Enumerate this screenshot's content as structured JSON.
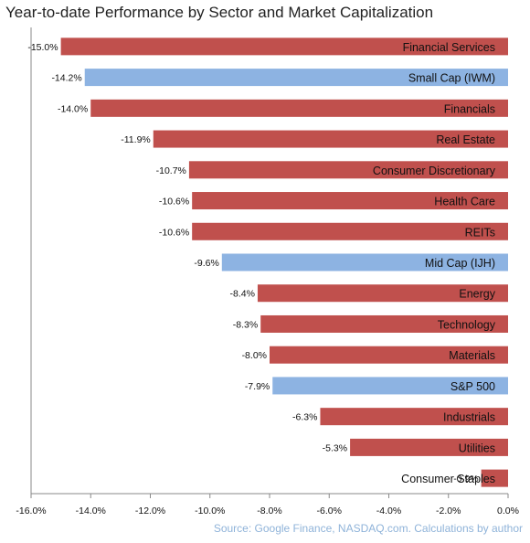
{
  "chart_data": {
    "type": "bar",
    "orientation": "horizontal",
    "title": "Year-to-date Performance by Sector and Market Capitalization",
    "source": "Source: Google Finance, NASDAQ.com. Calculations by author",
    "xlim": [
      -16,
      0
    ],
    "xticks": [
      -16,
      -14,
      -12,
      -10,
      -8,
      -6,
      -4,
      -2,
      0
    ],
    "xtick_labels": [
      "-16.0%",
      "-14.0%",
      "-12.0%",
      "-10.0%",
      "-8.0%",
      "-6.0%",
      "-4.0%",
      "-2.0%",
      "0.0%"
    ],
    "grid": false,
    "colors": {
      "sector": "#c0504d",
      "market_cap": "#8db3e2"
    },
    "categories": [
      {
        "label": "Financial Services",
        "value": -15.0,
        "value_label": "-15.0%",
        "group": "sector"
      },
      {
        "label": "Small Cap (IWM)",
        "value": -14.2,
        "value_label": "-14.2%",
        "group": "market_cap"
      },
      {
        "label": "Financials",
        "value": -14.0,
        "value_label": "-14.0%",
        "group": "sector"
      },
      {
        "label": "Real Estate",
        "value": -11.9,
        "value_label": "-11.9%",
        "group": "sector"
      },
      {
        "label": "Consumer Discretionary",
        "value": -10.7,
        "value_label": "-10.7%",
        "group": "sector"
      },
      {
        "label": "Health Care",
        "value": -10.6,
        "value_label": "-10.6%",
        "group": "sector"
      },
      {
        "label": "REITs",
        "value": -10.6,
        "value_label": "-10.6%",
        "group": "sector"
      },
      {
        "label": "Mid Cap (IJH)",
        "value": -9.6,
        "value_label": "-9.6%",
        "group": "market_cap"
      },
      {
        "label": "Energy",
        "value": -8.4,
        "value_label": "-8.4%",
        "group": "sector"
      },
      {
        "label": "Technology",
        "value": -8.3,
        "value_label": "-8.3%",
        "group": "sector"
      },
      {
        "label": "Materials",
        "value": -8.0,
        "value_label": "-8.0%",
        "group": "sector"
      },
      {
        "label": "S&P 500",
        "value": -7.9,
        "value_label": "-7.9%",
        "group": "market_cap"
      },
      {
        "label": "Industrials",
        "value": -6.3,
        "value_label": "-6.3%",
        "group": "sector"
      },
      {
        "label": "Utilities",
        "value": -5.3,
        "value_label": "-5.3%",
        "group": "sector"
      },
      {
        "label": "Consumer Staples",
        "value": -0.9,
        "value_label": "-0.9%",
        "group": "sector"
      }
    ]
  }
}
